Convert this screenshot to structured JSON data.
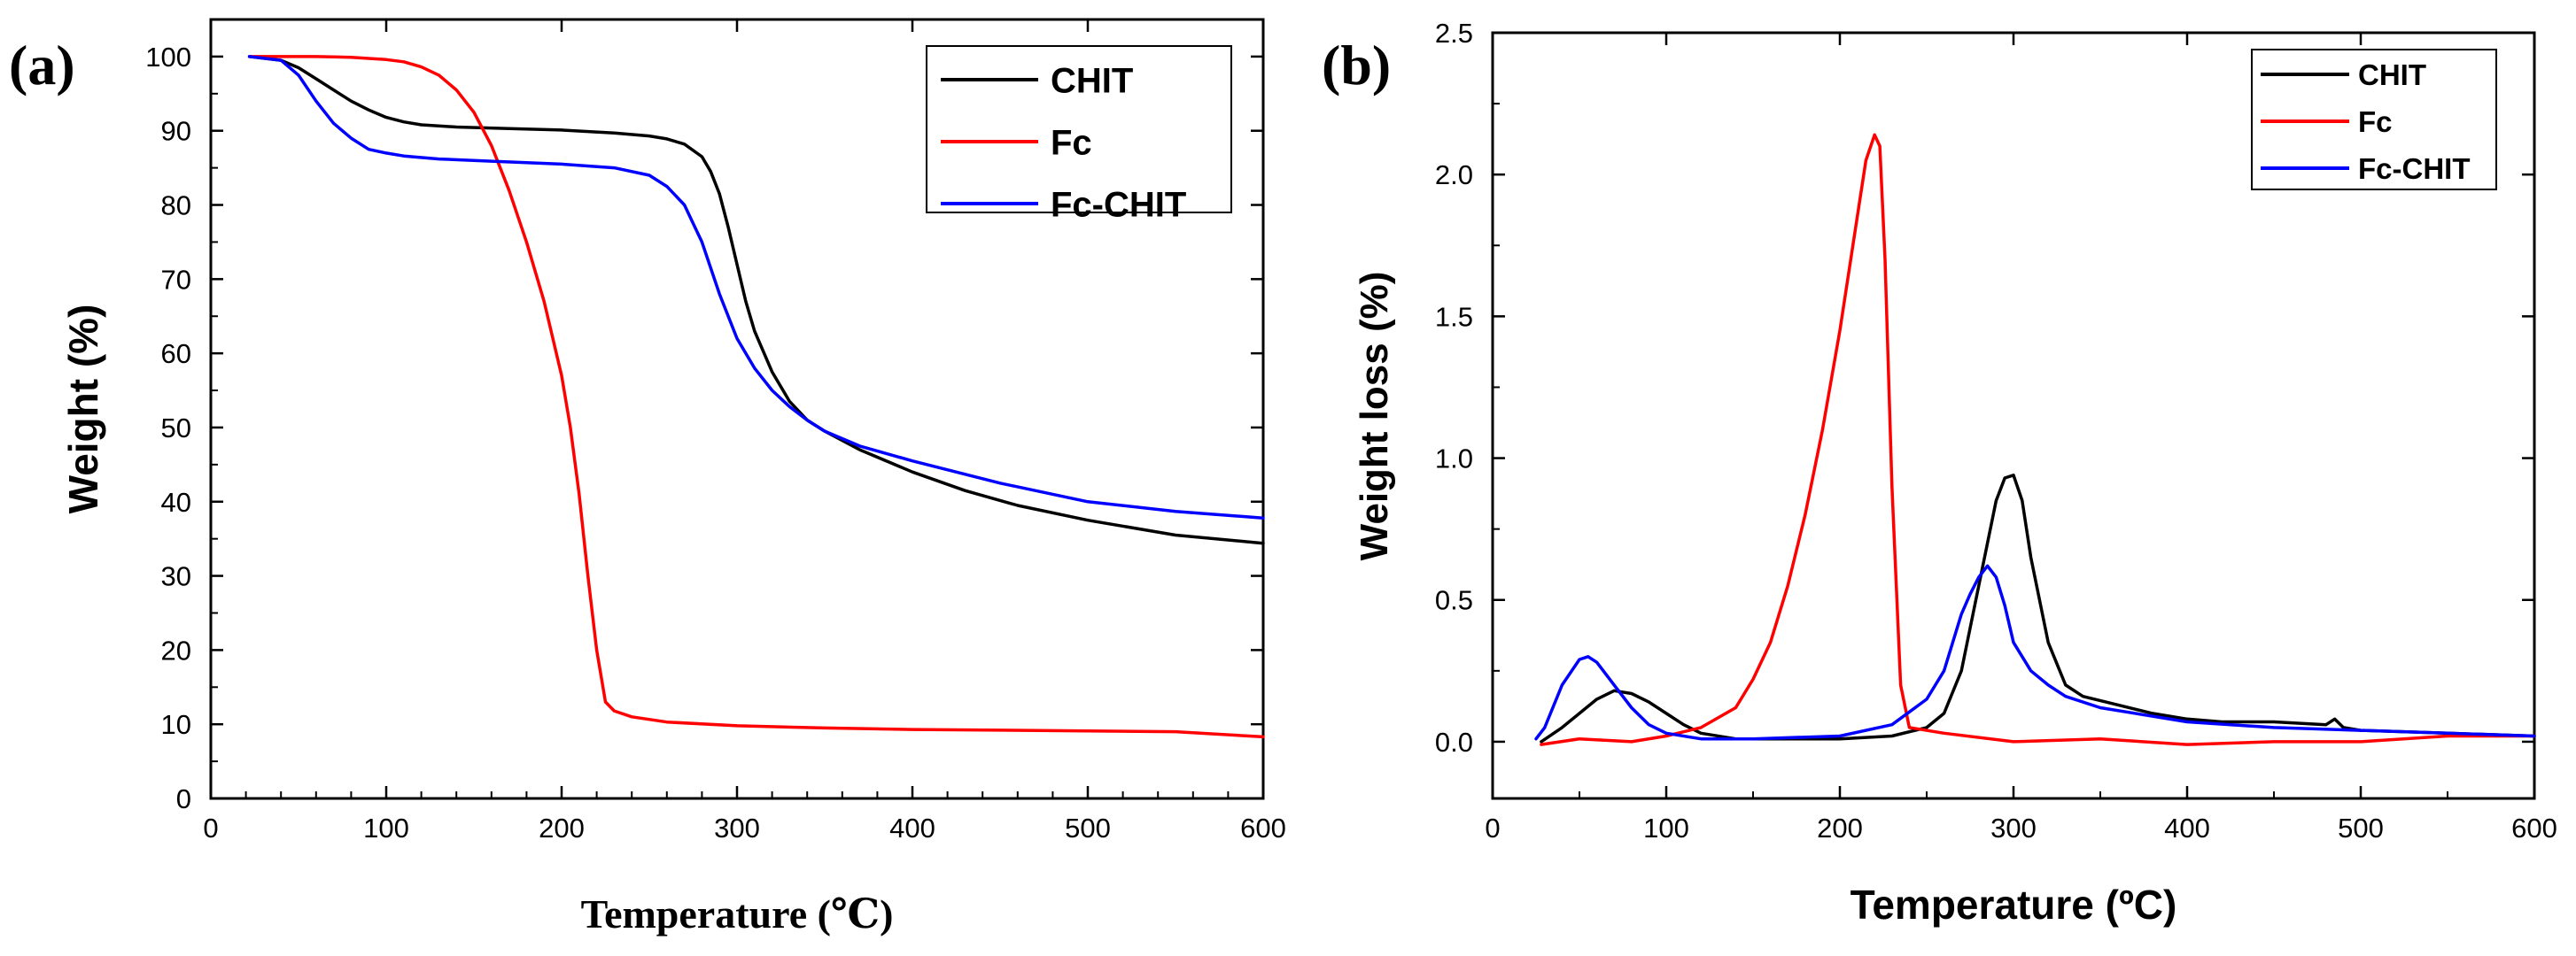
{
  "chart_data": [
    {
      "panel_label": "(a)",
      "type": "line",
      "xlabel": "Temperature (℃)",
      "ylabel": "Weight (%)",
      "xlim": [
        0,
        600
      ],
      "ylim": [
        0,
        105
      ],
      "xticks": [
        0,
        100,
        200,
        300,
        400,
        500,
        600
      ],
      "yticks": [
        0,
        10,
        20,
        30,
        40,
        50,
        60,
        70,
        80,
        90,
        100
      ],
      "xtick_labels": [
        "0",
        "100",
        "200",
        "300",
        "400",
        "500",
        "600"
      ],
      "ytick_labels": [
        "0",
        "10",
        "20",
        "30",
        "40",
        "50",
        "60",
        "70",
        "80",
        "90",
        "100"
      ],
      "legend_position": "top-right",
      "series": [
        {
          "name": "CHIT",
          "color": "#000000",
          "x": [
            22,
            40,
            50,
            60,
            70,
            80,
            90,
            100,
            110,
            120,
            140,
            170,
            200,
            230,
            250,
            260,
            270,
            280,
            285,
            290,
            295,
            300,
            305,
            310,
            320,
            330,
            340,
            350,
            370,
            400,
            430,
            460,
            500,
            550,
            600
          ],
          "y": [
            100,
            99.5,
            98.5,
            97,
            95.5,
            94,
            92.8,
            91.8,
            91.2,
            90.8,
            90.5,
            90.3,
            90.1,
            89.7,
            89.3,
            88.9,
            88.2,
            86.5,
            84.5,
            81.5,
            77,
            72,
            67,
            63,
            57.5,
            53.5,
            51,
            49.5,
            47,
            44,
            41.5,
            39.5,
            37.5,
            35.5,
            34.4
          ]
        },
        {
          "name": "Fc",
          "color": "#ff0000",
          "x": [
            22,
            40,
            60,
            80,
            100,
            110,
            120,
            130,
            140,
            150,
            160,
            170,
            180,
            190,
            200,
            205,
            210,
            215,
            220,
            225,
            230,
            240,
            260,
            300,
            350,
            400,
            450,
            500,
            550,
            600
          ],
          "y": [
            100,
            100,
            100,
            99.9,
            99.6,
            99.3,
            98.6,
            97.5,
            95.5,
            92.5,
            88,
            82,
            75,
            67,
            57,
            50,
            41,
            30,
            20,
            13,
            11.8,
            11,
            10.3,
            9.8,
            9.5,
            9.3,
            9.2,
            9.1,
            9,
            8.3
          ]
        },
        {
          "name": "Fc-CHIT",
          "color": "#0000ff",
          "x": [
            22,
            40,
            50,
            60,
            70,
            80,
            90,
            100,
            110,
            130,
            160,
            200,
            230,
            250,
            260,
            270,
            280,
            290,
            300,
            310,
            320,
            330,
            340,
            350,
            370,
            400,
            450,
            500,
            550,
            600
          ],
          "y": [
            100,
            99.5,
            97.5,
            94,
            91,
            89,
            87.5,
            87,
            86.6,
            86.2,
            85.9,
            85.5,
            85,
            84,
            82.5,
            80,
            75,
            68,
            62,
            58,
            55,
            52.8,
            51,
            49.5,
            47.5,
            45.5,
            42.5,
            40,
            38.7,
            37.8
          ]
        }
      ]
    },
    {
      "panel_label": "(b)",
      "type": "line",
      "xlabel": "Temperature (ºC)",
      "ylabel": "Weight loss (%)",
      "xlim": [
        0,
        600
      ],
      "ylim": [
        -0.2,
        2.5
      ],
      "xticks": [
        0,
        100,
        200,
        300,
        400,
        500,
        600
      ],
      "yticks": [
        0.0,
        0.5,
        1.0,
        1.5,
        2.0,
        2.5
      ],
      "xtick_labels": [
        "0",
        "100",
        "200",
        "300",
        "400",
        "500",
        "600"
      ],
      "ytick_labels": [
        "0.0",
        "0.5",
        "1.0",
        "1.5",
        "2.0",
        "2.5"
      ],
      "legend_position": "top-right",
      "series": [
        {
          "name": "CHIT",
          "color": "#000000",
          "x": [
            28,
            40,
            50,
            60,
            70,
            80,
            90,
            100,
            110,
            120,
            140,
            170,
            200,
            230,
            250,
            260,
            270,
            280,
            290,
            295,
            300,
            305,
            310,
            320,
            330,
            340,
            360,
            380,
            400,
            420,
            450,
            480,
            485,
            490,
            500,
            550,
            600
          ],
          "y": [
            0.0,
            0.05,
            0.1,
            0.15,
            0.18,
            0.17,
            0.14,
            0.1,
            0.06,
            0.03,
            0.01,
            0.01,
            0.01,
            0.02,
            0.05,
            0.1,
            0.25,
            0.55,
            0.85,
            0.93,
            0.94,
            0.85,
            0.65,
            0.35,
            0.2,
            0.16,
            0.13,
            0.1,
            0.08,
            0.07,
            0.07,
            0.06,
            0.08,
            0.05,
            0.04,
            0.03,
            0.02
          ]
        },
        {
          "name": "Fc",
          "color": "#ff0000",
          "x": [
            28,
            50,
            80,
            100,
            120,
            140,
            150,
            160,
            170,
            180,
            190,
            200,
            205,
            210,
            215,
            220,
            223,
            226,
            230,
            235,
            240,
            260,
            300,
            350,
            400,
            450,
            500,
            550,
            600
          ],
          "y": [
            -0.01,
            0.01,
            0.0,
            0.02,
            0.05,
            0.12,
            0.22,
            0.35,
            0.55,
            0.8,
            1.1,
            1.45,
            1.65,
            1.85,
            2.05,
            2.14,
            2.1,
            1.7,
            0.9,
            0.2,
            0.05,
            0.03,
            0.0,
            0.01,
            -0.01,
            0.0,
            0.0,
            0.02,
            0.02
          ]
        },
        {
          "name": "Fc-CHIT",
          "color": "#0000ff",
          "x": [
            25,
            30,
            40,
            50,
            55,
            60,
            70,
            80,
            90,
            100,
            120,
            150,
            200,
            230,
            250,
            260,
            270,
            275,
            280,
            285,
            290,
            295,
            300,
            310,
            320,
            330,
            350,
            400,
            450,
            500,
            550,
            600
          ],
          "y": [
            0.01,
            0.05,
            0.2,
            0.29,
            0.3,
            0.28,
            0.2,
            0.12,
            0.06,
            0.03,
            0.01,
            0.01,
            0.02,
            0.06,
            0.15,
            0.25,
            0.45,
            0.52,
            0.58,
            0.62,
            0.58,
            0.48,
            0.35,
            0.25,
            0.2,
            0.16,
            0.12,
            0.07,
            0.05,
            0.04,
            0.03,
            0.02
          ]
        }
      ]
    }
  ]
}
